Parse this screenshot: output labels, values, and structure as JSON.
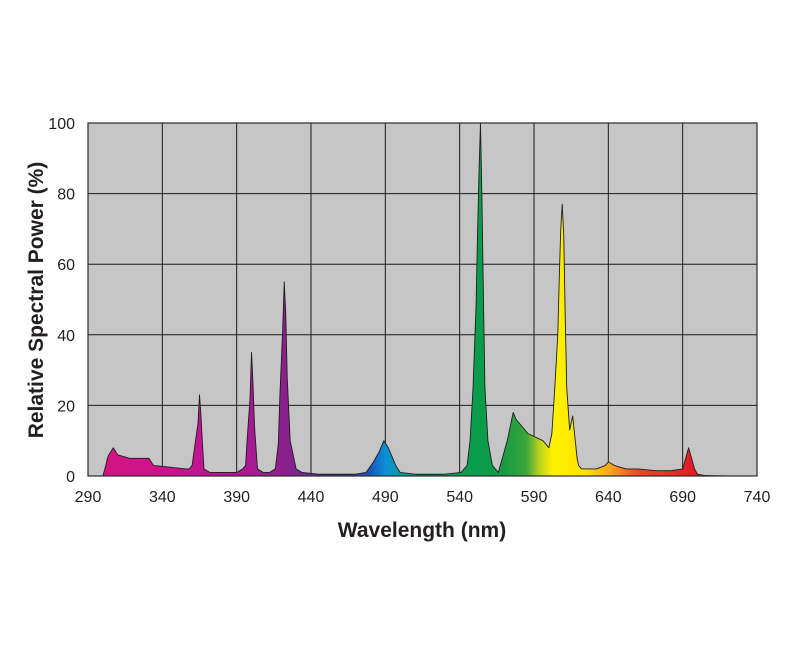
{
  "chart_data": {
    "type": "area",
    "title": "",
    "xlabel": "Wavelength (nm)",
    "ylabel": "Relative Spectral Power (%)",
    "xlim": [
      290,
      740
    ],
    "ylim": [
      0,
      100
    ],
    "x_ticks": [
      290,
      340,
      390,
      440,
      490,
      540,
      590,
      640,
      690,
      740
    ],
    "y_ticks": [
      0,
      20,
      40,
      60,
      80,
      100
    ],
    "grid": true,
    "legend": "none",
    "colors": {
      "plot_background": "#c6c6c6",
      "grid": "#1a1a1a",
      "outline": "#2a2a2a"
    },
    "series": [
      {
        "x": [
          300,
          302,
          303,
          304,
          307,
          310,
          318,
          326,
          331,
          334,
          356,
          358,
          360,
          361,
          364,
          365,
          366,
          367,
          368,
          372,
          380,
          390,
          394,
          396,
          397,
          399,
          400,
          401,
          402,
          404,
          408,
          412,
          416,
          418,
          419,
          421,
          422,
          423,
          424,
          426,
          430,
          434,
          445,
          470,
          477,
          482,
          486,
          488,
          489,
          492,
          494,
          497,
          500,
          510,
          530,
          541,
          545,
          547,
          549,
          551,
          552,
          553,
          554,
          555,
          556,
          557,
          559,
          562,
          566,
          572,
          576,
          578,
          586,
          596,
          600,
          602,
          604,
          606,
          607,
          608,
          609,
          610,
          611,
          612,
          614,
          615,
          616,
          617,
          618,
          619,
          620,
          622,
          626,
          632,
          638,
          640,
          644,
          652,
          660,
          672,
          682,
          690,
          692,
          694,
          696,
          698,
          700,
          704,
          710,
          720,
          740
        ],
        "y": [
          0,
          3,
          5,
          6,
          8,
          6,
          5,
          5,
          5,
          3,
          2,
          2,
          3,
          6,
          15,
          23,
          17,
          9,
          2,
          1,
          1,
          1,
          2,
          3,
          10,
          22,
          35,
          26,
          14,
          2,
          1,
          1,
          2,
          9,
          22,
          42,
          55,
          46,
          28,
          10,
          2,
          1,
          0.5,
          0.5,
          1,
          4,
          7,
          9,
          10,
          8,
          6,
          3,
          1,
          0.5,
          0.5,
          1,
          3,
          10,
          25,
          48,
          68,
          86,
          100,
          78,
          50,
          25,
          10,
          3,
          1,
          10,
          18,
          16,
          12,
          10,
          8,
          12,
          25,
          40,
          56,
          70,
          77,
          68,
          45,
          25,
          13,
          15,
          17,
          13,
          9,
          5,
          3,
          2,
          2,
          2,
          3,
          4,
          3,
          2,
          2,
          1.5,
          1.5,
          2,
          5,
          8,
          5,
          2,
          0.5,
          0.2,
          0.1,
          0,
          0
        ]
      }
    ]
  }
}
